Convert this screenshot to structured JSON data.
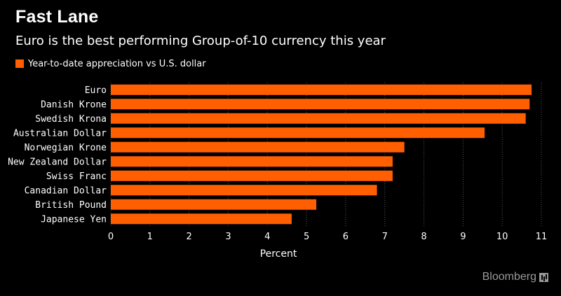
{
  "header": {
    "title": "Fast Lane",
    "subtitle": "Euro is the best performing Group-of-10 currency this year"
  },
  "legend": {
    "label": "Year-to-date appreciation vs U.S. dollar",
    "color": "#ff5f00"
  },
  "branding": {
    "name": "Bloomberg"
  },
  "colors": {
    "bar": "#ff5f00",
    "background": "#000000",
    "grid": "#555555",
    "text": "#ffffff"
  },
  "chart_data": {
    "type": "bar",
    "orientation": "horizontal",
    "title": "Fast Lane",
    "subtitle": "Euro is the best performing Group-of-10 currency this year",
    "xlabel": "Percent",
    "ylabel": "",
    "categories": [
      "Euro",
      "Danish Krone",
      "Swedish Krona",
      "Australian Dollar",
      "Norwegian Krone",
      "New Zealand Dollar",
      "Swiss Franc",
      "Canadian Dollar",
      "British Pound",
      "Japanese Yen"
    ],
    "series": [
      {
        "name": "Year-to-date appreciation vs U.S. dollar",
        "values": [
          10.75,
          10.7,
          10.6,
          9.55,
          7.5,
          7.2,
          7.2,
          6.8,
          5.25,
          4.62
        ]
      }
    ],
    "xlim": [
      0,
      11
    ],
    "xticks": [
      0,
      1,
      2,
      3,
      4,
      5,
      6,
      7,
      8,
      9,
      10,
      11
    ],
    "grid": true,
    "legend_position": "top-left"
  }
}
